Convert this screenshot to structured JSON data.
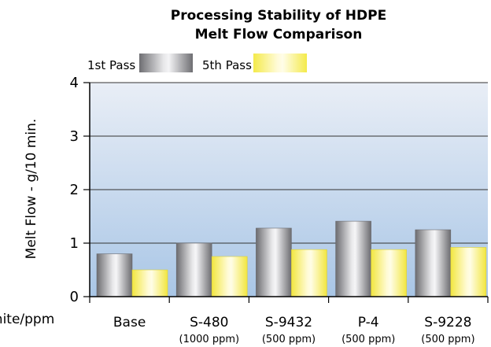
{
  "chart_data": {
    "type": "bar",
    "title": "Processing Stability of HDPE",
    "subtitle": "Melt Flow Comparison",
    "ylabel": "Melt Flow - g/10 min.",
    "xlabel": "phite/ppm",
    "ylim": [
      0,
      4
    ],
    "yticks": [
      "0",
      "1",
      "2",
      "3",
      "4"
    ],
    "grid": true,
    "legend_placement": "top",
    "categories": [
      "Base",
      "S-480",
      "S-9432",
      "P-4",
      "S-9228"
    ],
    "sublabels": [
      "",
      "(1000 ppm)",
      "(500 ppm)",
      "(500 ppm)",
      "(500 ppm)"
    ],
    "series": [
      {
        "name": "1st Pass",
        "values": [
          0.8,
          1.0,
          1.28,
          1.41,
          1.25
        ],
        "color": "#a8a8ac"
      },
      {
        "name": "5th Pass",
        "values": [
          0.5,
          0.75,
          0.88,
          0.88,
          0.92
        ],
        "color": "#f7f07a"
      }
    ]
  }
}
